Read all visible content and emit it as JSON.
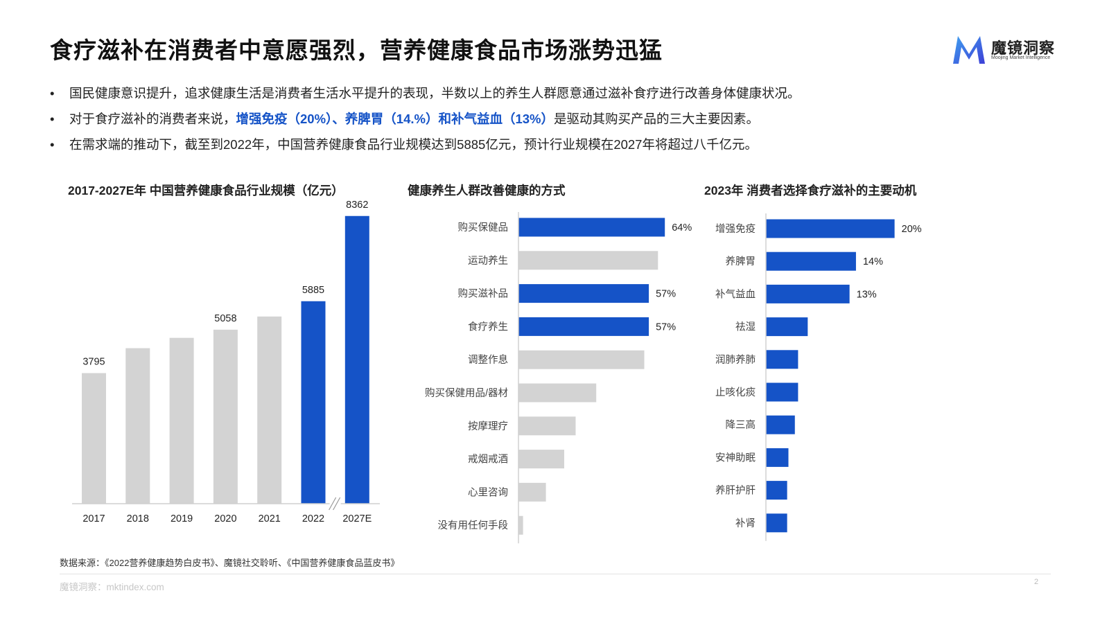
{
  "title": "食疗滋补在消费者中意愿强烈，营养健康食品市场涨势迅猛",
  "logo": {
    "name": "魔镜洞察",
    "tagline": "Moojing Market Intelligence"
  },
  "bullets": [
    {
      "text": "国民健康意识提升，追求健康生活是消费者生活水平提升的表现，半数以上的养生人群愿意通过滋补食疗进行改善身体健康状况。"
    },
    {
      "pre": "对于食疗滋补的消费者来说，",
      "highlight": "增强免疫（20%）、养脾胃（14.%）和补气益血（13%）",
      "post": "是驱动其购买产品的三大主要因素。"
    },
    {
      "text": "在需求端的推动下，截至到2022年，中国营养健康食品行业规模达到5885亿元，预计行业规模在2027年将超过八千亿元。"
    }
  ],
  "colors": {
    "highlight": "#1553C7",
    "blue_bar": "#1553C7",
    "gray_bar": "#D3D3D3"
  },
  "chart_data": [
    {
      "type": "bar",
      "title": "2017-2027E年 中国营养健康食品行业规模（亿元）",
      "categories": [
        "2017",
        "2018",
        "2019",
        "2020",
        "2021",
        "2022",
        "2027E"
      ],
      "values": [
        3795,
        4520,
        4820,
        5058,
        5440,
        5885,
        8362
      ],
      "labels": [
        "3795",
        "",
        "",
        "5058",
        "",
        "5885",
        "8362"
      ],
      "highlighted": [
        false,
        false,
        false,
        false,
        false,
        true,
        true
      ],
      "axis_break_between": [
        "2022",
        "2027E"
      ],
      "ylim": [
        0,
        8800
      ],
      "xlabel": "",
      "ylabel": "",
      "grid": false
    },
    {
      "type": "bar",
      "orientation": "horizontal",
      "title": "健康养生人群改善健康的方式",
      "categories": [
        "购买保健品",
        "运动养生",
        "购买滋补品",
        "食疗养生",
        "调整作息",
        "购买保健用品/器材",
        "按摩理疗",
        "戒烟戒酒",
        "心里咨询",
        "没有用任何手段"
      ],
      "values": [
        64,
        61,
        57,
        57,
        55,
        34,
        25,
        20,
        12,
        2
      ],
      "labels": [
        "64%",
        "",
        "57%",
        "57%",
        "",
        "",
        "",
        "",
        "",
        ""
      ],
      "highlighted": [
        true,
        false,
        true,
        true,
        false,
        false,
        false,
        false,
        false,
        false
      ],
      "xlim": [
        0,
        100
      ],
      "grid": false
    },
    {
      "type": "bar",
      "orientation": "horizontal",
      "title": "2023年 消费者选择食疗滋补的主要动机",
      "categories": [
        "增强免疫",
        "养脾胃",
        "补气益血",
        "祛湿",
        "润肺养肺",
        "止咳化痰",
        "降三高",
        "安神助眠",
        "养肝护肝",
        "补肾"
      ],
      "values": [
        20,
        14,
        13,
        6.5,
        5,
        5,
        4.5,
        3.5,
        3.3,
        3.3
      ],
      "labels": [
        "20%",
        "14%",
        "13%",
        "",
        "",
        "",
        "",
        "",
        "",
        ""
      ],
      "highlighted": [
        true,
        true,
        true,
        true,
        true,
        true,
        true,
        true,
        true,
        true
      ],
      "xlim": [
        0,
        32
      ],
      "grid": false
    }
  ],
  "source": "数据来源：《2022营养健康趋势白皮书》、魔镜社交聆听、《中国营养健康食品蓝皮书》",
  "footer": "魔镜洞察：mktindex.com",
  "page_number": "2"
}
